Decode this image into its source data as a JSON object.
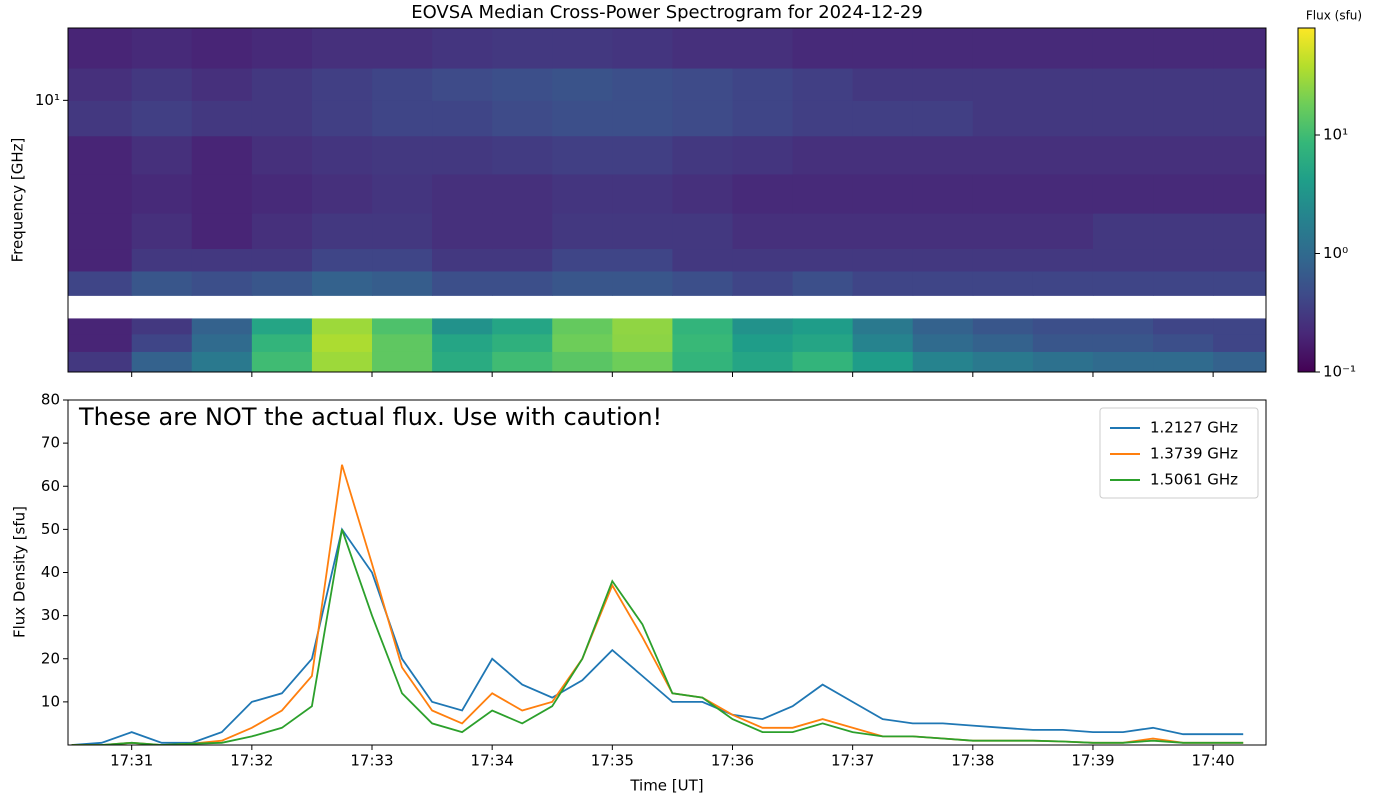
{
  "chart_data": [
    {
      "type": "heatmap",
      "title": "EOVSA Median Cross-Power Spectrogram for 2024-12-29",
      "ylabel": "Frequency [GHz]",
      "yscale": "log",
      "colormap": "viridis",
      "xlim": [
        1050.47,
        1060.44
      ],
      "xticks": [
        1051,
        1052,
        1053,
        1054,
        1055,
        1056,
        1057,
        1058,
        1059,
        1060
      ],
      "ylim": [
        1.1,
        18
      ],
      "yticks": [
        {
          "value": 10,
          "label": "10¹"
        }
      ],
      "xbins": [
        1050.47,
        1051,
        1051.5,
        1052,
        1052.5,
        1053,
        1053.5,
        1054,
        1054.5,
        1055,
        1055.5,
        1056,
        1056.5,
        1057,
        1057.5,
        1058,
        1058.5,
        1059,
        1059.5,
        1060,
        1060.44
      ],
      "ybins": [
        1.1,
        1.3,
        1.5,
        1.7,
        2.05,
        2.5,
        3,
        4,
        5.5,
        7.5,
        10,
        13,
        18
      ],
      "values": [
        [
          0.3,
          0.8,
          1.5,
          10,
          30,
          15,
          6,
          10,
          14,
          18,
          8,
          5,
          8,
          4,
          2,
          1.5,
          1.2,
          1,
          1,
          0.8
        ],
        [
          0.2,
          0.4,
          1,
          8,
          35,
          15,
          5,
          7,
          18,
          25,
          9,
          4,
          5,
          2,
          1,
          0.8,
          0.6,
          0.6,
          0.5,
          0.4
        ],
        [
          0.2,
          0.3,
          0.8,
          5,
          30,
          12,
          3,
          5,
          16,
          26,
          8,
          3,
          4,
          1.5,
          0.8,
          0.6,
          0.5,
          0.5,
          0.4,
          0.4
        ],
        [
          null,
          null,
          null,
          null,
          null,
          null,
          null,
          null,
          null,
          null,
          null,
          null,
          null,
          null,
          null,
          null,
          null,
          null,
          null,
          null
        ],
        [
          0.4,
          0.6,
          0.5,
          0.6,
          0.8,
          0.7,
          0.5,
          0.5,
          0.6,
          0.6,
          0.5,
          0.4,
          0.5,
          0.4,
          0.4,
          0.4,
          0.4,
          0.4,
          0.4,
          0.4
        ],
        [
          0.2,
          0.3,
          0.3,
          0.3,
          0.4,
          0.4,
          0.3,
          0.3,
          0.4,
          0.4,
          0.3,
          0.3,
          0.3,
          0.3,
          0.3,
          0.3,
          0.3,
          0.3,
          0.3,
          0.3
        ],
        [
          0.2,
          0.25,
          0.2,
          0.25,
          0.3,
          0.3,
          0.25,
          0.25,
          0.3,
          0.3,
          0.3,
          0.25,
          0.25,
          0.25,
          0.25,
          0.25,
          0.25,
          0.3,
          0.3,
          0.3
        ],
        [
          0.2,
          0.22,
          0.2,
          0.22,
          0.25,
          0.28,
          0.25,
          0.25,
          0.28,
          0.28,
          0.25,
          0.22,
          0.22,
          0.22,
          0.22,
          0.22,
          0.22,
          0.22,
          0.22,
          0.22
        ],
        [
          0.2,
          0.25,
          0.2,
          0.25,
          0.28,
          0.3,
          0.3,
          0.32,
          0.35,
          0.35,
          0.3,
          0.28,
          0.25,
          0.25,
          0.25,
          0.25,
          0.25,
          0.25,
          0.25,
          0.25
        ],
        [
          0.3,
          0.35,
          0.3,
          0.3,
          0.35,
          0.4,
          0.4,
          0.45,
          0.5,
          0.5,
          0.45,
          0.4,
          0.35,
          0.35,
          0.35,
          0.3,
          0.3,
          0.3,
          0.3,
          0.3
        ],
        [
          0.25,
          0.3,
          0.25,
          0.3,
          0.35,
          0.4,
          0.45,
          0.5,
          0.55,
          0.5,
          0.45,
          0.4,
          0.35,
          0.3,
          0.3,
          0.3,
          0.3,
          0.3,
          0.3,
          0.3
        ],
        [
          0.2,
          0.22,
          0.2,
          0.22,
          0.25,
          0.25,
          0.28,
          0.3,
          0.3,
          0.28,
          0.25,
          0.25,
          0.22,
          0.22,
          0.22,
          0.22,
          0.22,
          0.22,
          0.22,
          0.22
        ]
      ],
      "colorbar": {
        "label": "Flux (sfu)",
        "scale": "log",
        "lim": [
          0.1,
          80
        ],
        "ticks": [
          {
            "value": 10,
            "label": "10¹"
          },
          {
            "value": 1,
            "label": "10⁰"
          },
          {
            "value": 0.1,
            "label": "10⁻¹"
          }
        ]
      }
    },
    {
      "type": "line",
      "annotation": "These are NOT the actual flux. Use with caution!",
      "xlabel": "Time [UT]",
      "ylabel": "Flux Density [sfu]",
      "legend": "upper right",
      "xlim": [
        1050.47,
        1060.44
      ],
      "xticks": [
        {
          "value": 1051,
          "label": "17:31"
        },
        {
          "value": 1052,
          "label": "17:32"
        },
        {
          "value": 1053,
          "label": "17:33"
        },
        {
          "value": 1054,
          "label": "17:34"
        },
        {
          "value": 1055,
          "label": "17:35"
        },
        {
          "value": 1056,
          "label": "17:36"
        },
        {
          "value": 1057,
          "label": "17:37"
        },
        {
          "value": 1058,
          "label": "17:38"
        },
        {
          "value": 1059,
          "label": "17:39"
        },
        {
          "value": 1060,
          "label": "17:40"
        }
      ],
      "ylim": [
        0,
        80
      ],
      "yticks": [
        10,
        20,
        30,
        40,
        50,
        60,
        70,
        80
      ],
      "x": [
        1050.5,
        1050.75,
        1051,
        1051.25,
        1051.5,
        1051.75,
        1052,
        1052.25,
        1052.5,
        1052.75,
        1053,
        1053.25,
        1053.5,
        1053.75,
        1054,
        1054.25,
        1054.5,
        1054.75,
        1055,
        1055.25,
        1055.5,
        1055.75,
        1056,
        1056.25,
        1056.5,
        1056.75,
        1057,
        1057.25,
        1057.5,
        1057.75,
        1058,
        1058.25,
        1058.5,
        1058.75,
        1059,
        1059.25,
        1059.5,
        1059.75,
        1060,
        1060.25
      ],
      "series": [
        {
          "name": "1.2127 GHz",
          "color": "#1f77b4",
          "values": [
            0,
            0.5,
            3,
            0.5,
            0.5,
            3,
            10,
            12,
            20,
            50,
            40,
            20,
            10,
            8,
            20,
            14,
            11,
            15,
            22,
            16,
            10,
            10,
            7,
            6,
            9,
            14,
            10,
            6,
            5,
            5,
            4.5,
            4,
            3.5,
            3.5,
            3,
            3,
            4,
            2.5,
            2.5,
            2.5
          ]
        },
        {
          "name": "1.3739 GHz",
          "color": "#ff7f0e",
          "values": [
            0,
            0,
            0.5,
            0,
            0.3,
            1,
            4,
            8,
            16,
            65,
            42,
            18,
            8,
            5,
            12,
            8,
            10,
            20,
            37,
            25,
            12,
            11,
            7,
            4,
            4,
            6,
            4,
            2,
            2,
            1.5,
            1,
            1,
            1,
            0.8,
            0.5,
            0.5,
            1.5,
            0.5,
            0.5,
            0.5
          ]
        },
        {
          "name": "1.5061 GHz",
          "color": "#2ca02c",
          "values": [
            0,
            0,
            0.5,
            0,
            0.3,
            0.5,
            2,
            4,
            9,
            50,
            30,
            12,
            5,
            3,
            8,
            5,
            9,
            20,
            38,
            28,
            12,
            11,
            6,
            3,
            3,
            5,
            3,
            2,
            2,
            1.5,
            1,
            1,
            1,
            0.8,
            0.5,
            0.5,
            1,
            0.5,
            0.5,
            0.5
          ]
        }
      ]
    }
  ]
}
